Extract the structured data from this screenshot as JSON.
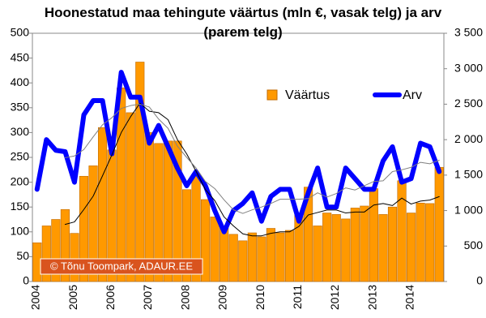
{
  "chart_data": {
    "type": "bar",
    "title": "Hoonestatud maa tehingute väärtus (mln €, vasak telg) ja arv (parem telg)",
    "annotation": "© Tõnu Toompark, ADAUR.EE",
    "categories": [
      "2004",
      null,
      null,
      null,
      "2005",
      null,
      null,
      null,
      "2006",
      null,
      null,
      null,
      "2007",
      null,
      null,
      null,
      "2008",
      null,
      null,
      null,
      "2009",
      null,
      null,
      null,
      "2010",
      null,
      null,
      null,
      "2011",
      null,
      null,
      null,
      "2012",
      null,
      null,
      null,
      "2013",
      null,
      null,
      null,
      "2014",
      null,
      null,
      null
    ],
    "series": [
      {
        "name": "Väärtus",
        "type": "bar",
        "axis": "y",
        "color": "#ff9900",
        "values": [
          78,
          112,
          125,
          145,
          97,
          212,
          233,
          310,
          265,
          390,
          340,
          442,
          300,
          278,
          283,
          283,
          185,
          215,
          165,
          130,
          108,
          95,
          82,
          98,
          90,
          107,
          98,
          103,
          135,
          190,
          112,
          138,
          135,
          126,
          148,
          152,
          187,
          135,
          150,
          203,
          138,
          158,
          157,
          230
        ]
      },
      {
        "name": "Arv",
        "type": "line",
        "axis": "y2",
        "color": "#0000ff",
        "values": [
          1300,
          2000,
          1850,
          1830,
          1400,
          2350,
          2550,
          2550,
          1800,
          2950,
          2600,
          2600,
          1950,
          2200,
          1900,
          1600,
          1350,
          1550,
          1350,
          1000,
          700,
          1000,
          1100,
          1250,
          850,
          1200,
          1300,
          1300,
          850,
          1250,
          1600,
          1050,
          1050,
          1600,
          1450,
          1300,
          1300,
          1700,
          1900,
          1400,
          1450,
          1950,
          1900,
          1550
        ]
      },
      {
        "type": "line",
        "axis": "y",
        "color": "#000000",
        "values": [
          null,
          null,
          null,
          115,
          120,
          145,
          172,
          213,
          255,
          300,
          332,
          359,
          343,
          340,
          326,
          286,
          257,
          222,
          185,
          163,
          130,
          112,
          96,
          92,
          92,
          97,
          100,
          100,
          111,
          134,
          139,
          144,
          144,
          138,
          140,
          140,
          154,
          157,
          153,
          168,
          156,
          162,
          164,
          171
        ]
      },
      {
        "type": "line",
        "axis": "y2",
        "color": "#808080",
        "values": [
          null,
          null,
          null,
          1745,
          1770,
          1860,
          2040,
          2210,
          2310,
          2440,
          2480,
          2500,
          2460,
          2290,
          2160,
          1910,
          1750,
          1600,
          1410,
          1310,
          1150,
          1010,
          960,
          1010,
          1050,
          1100,
          1160,
          1160,
          1160,
          1170,
          1250,
          1190,
          1240,
          1320,
          1290,
          1350,
          1410,
          1420,
          1550,
          1575,
          1610,
          1680,
          1660,
          1710
        ]
      }
    ],
    "ylim": [
      0,
      500
    ],
    "yticks": [
      0,
      50,
      100,
      150,
      200,
      250,
      300,
      350,
      400,
      450,
      500
    ],
    "y2lim": [
      0,
      3500
    ],
    "y2ticks": [
      0,
      500,
      {
        "value": 1000,
        "label": "1 000"
      },
      {
        "value": 1500,
        "label": "1 500"
      },
      {
        "value": 2000,
        "label": "2 000"
      },
      {
        "value": 2500,
        "label": "2 500"
      },
      {
        "value": 3000,
        "label": "3 000"
      },
      {
        "value": 3500,
        "label": "3 500"
      }
    ],
    "grid": false
  }
}
